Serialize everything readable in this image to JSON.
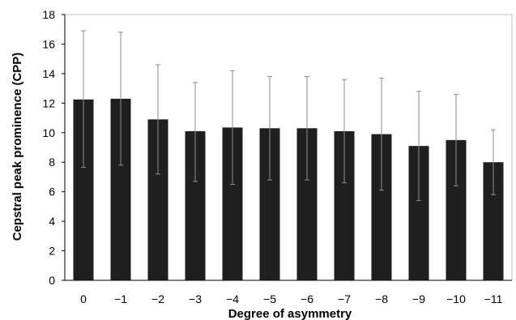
{
  "chart_data": {
    "type": "bar",
    "title": "",
    "xlabel": "Degree of asymmetry",
    "ylabel": "Cepstral peak prominence (CPP)",
    "categories": [
      "0",
      "−1",
      "−2",
      "−3",
      "−4",
      "−5",
      "−6",
      "−7",
      "−8",
      "−9",
      "−10",
      "−11"
    ],
    "values": [
      12.25,
      12.3,
      10.9,
      10.1,
      10.35,
      10.3,
      10.3,
      10.1,
      9.9,
      9.1,
      9.5,
      8.0
    ],
    "error_upper": [
      16.9,
      16.8,
      14.6,
      13.4,
      14.2,
      13.8,
      13.8,
      13.6,
      13.7,
      12.8,
      12.6,
      10.2
    ],
    "error_lower": [
      7.65,
      7.8,
      7.2,
      6.7,
      6.5,
      6.8,
      6.8,
      6.6,
      6.1,
      5.4,
      6.4,
      5.8
    ],
    "ylim": [
      0,
      18
    ],
    "y_ticks": [
      "0",
      "2",
      "4",
      "6",
      "8",
      "10",
      "12",
      "14",
      "16",
      "18"
    ],
    "grid": false,
    "legend": "none",
    "colors": {
      "bar": "#1f1f1f",
      "error_bar": "#8c8c8c",
      "axis": "#000000",
      "frame": "#bfbfbf"
    }
  }
}
